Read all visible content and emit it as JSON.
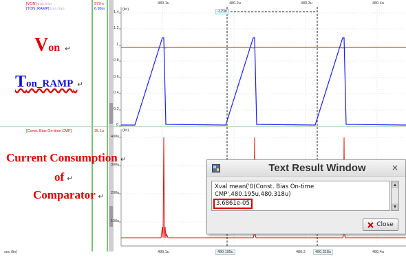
{
  "top_plot": {
    "legend": [
      {
        "name": "[VON]",
        "source": "tran.tran",
        "value": "977m",
        "color": "#e01010"
      },
      {
        "name": "[TON_RAMP]",
        "source": "tran.tran",
        "value": "6.96m",
        "color": "#1a1aff"
      }
    ],
    "y_unit": "(lin)",
    "y_ticks": [
      "1.4",
      "1.2",
      "1",
      "0.8",
      "0.6",
      "0.4",
      "0.2",
      "0"
    ],
    "delta_label": "-123n"
  },
  "bottom_plot": {
    "legend": [
      {
        "name": "[Const. Bias On-time CMP]",
        "source": "",
        "value": "35.1u",
        "color": "#e01010"
      }
    ],
    "y_unit": "(lin)",
    "y_ticks": [
      "400u",
      "300u",
      "200u",
      "100u"
    ]
  },
  "x_axis": {
    "ticks_top": [
      "480.1u",
      "480.2u",
      "480.3u",
      "480.4u"
    ],
    "ticks_bottom": [
      "480.1u",
      "480.195u",
      "480.2",
      "480.318u",
      "480.4u"
    ],
    "label": "sec (lin)"
  },
  "annotations": {
    "von_main": "V",
    "von_sub": "on",
    "tramp_main": "T",
    "tramp_sub": "on_RAMP",
    "current_line1": "Current Consumption",
    "current_line2": "of",
    "current_line3": "Comparator",
    "return_mark": "↵"
  },
  "text_result_window": {
    "title": "Text Result Window",
    "close_x": "×",
    "expression": "Xval mean('0(Const. Bias On-time CMP',480.195u,480.318u)",
    "result": "3.6861e-05",
    "close_button": "Close"
  },
  "colors": {
    "von": "#e01010",
    "ramp": "#1a1aff",
    "current": "#e01010",
    "grid": "#c0d8c0",
    "annot_red": "#e00000",
    "annot_blue": "#1010d0"
  }
}
